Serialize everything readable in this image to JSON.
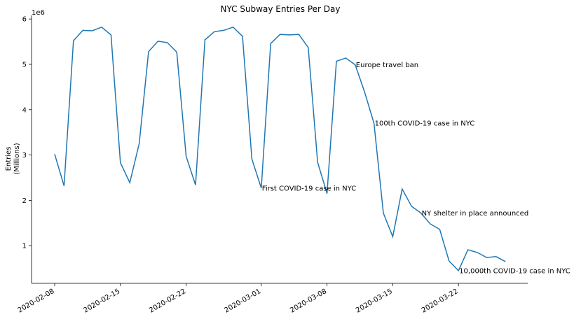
{
  "chart_data": {
    "type": "line",
    "title": "NYC Subway Entries Per Day",
    "ylabel": [
      "Entries",
      "(Millions)"
    ],
    "y_offset_label": "1e6",
    "ylim": [
      0.17,
      6.08
    ],
    "y_ticks": [
      1,
      2,
      3,
      4,
      5,
      6
    ],
    "y_tick_labels": [
      "1",
      "2",
      "3",
      "4",
      "5",
      "6"
    ],
    "x_ticks": [
      "2020-02-08",
      "2020-02-15",
      "2020-02-22",
      "2020-03-01",
      "2020-03-08",
      "2020-03-15",
      "2020-03-22"
    ],
    "grid": false,
    "series": [
      {
        "color": "#1f77b4",
        "x": [
          "2020-02-08",
          "2020-02-09",
          "2020-02-10",
          "2020-02-11",
          "2020-02-12",
          "2020-02-13",
          "2020-02-14",
          "2020-02-15",
          "2020-02-16",
          "2020-02-17",
          "2020-02-18",
          "2020-02-19",
          "2020-02-20",
          "2020-02-21",
          "2020-02-22",
          "2020-02-23",
          "2020-02-24",
          "2020-02-25",
          "2020-02-26",
          "2020-02-27",
          "2020-02-28",
          "2020-02-29",
          "2020-03-01",
          "2020-03-02",
          "2020-03-03",
          "2020-03-04",
          "2020-03-05",
          "2020-03-06",
          "2020-03-07",
          "2020-03-08",
          "2020-03-09",
          "2020-03-10",
          "2020-03-11",
          "2020-03-12",
          "2020-03-13",
          "2020-03-14",
          "2020-03-15",
          "2020-03-16",
          "2020-03-17",
          "2020-03-18",
          "2020-03-19",
          "2020-03-20",
          "2020-03-21",
          "2020-03-22",
          "2020-03-23",
          "2020-03-24",
          "2020-03-25",
          "2020-03-26",
          "2020-03-27"
        ],
        "y": [
          3.02,
          2.32,
          5.52,
          5.75,
          5.74,
          5.82,
          5.65,
          2.83,
          2.39,
          3.25,
          5.28,
          5.51,
          5.48,
          5.27,
          2.97,
          2.34,
          5.54,
          5.72,
          5.75,
          5.82,
          5.62,
          2.91,
          2.27,
          5.46,
          5.66,
          5.65,
          5.66,
          5.37,
          2.84,
          2.15,
          5.07,
          5.14,
          4.99,
          4.39,
          3.7,
          1.72,
          1.2,
          2.25,
          1.87,
          1.72,
          1.48,
          1.36,
          0.66,
          0.45,
          0.91,
          0.85,
          0.74,
          0.76,
          0.65
        ]
      }
    ],
    "annotations": [
      {
        "date": "2020-03-01",
        "y": 2.27,
        "text": "First COVID-19 case in NYC"
      },
      {
        "date": "2020-03-11",
        "y": 4.99,
        "text": "Europe travel ban"
      },
      {
        "date": "2020-03-13",
        "y": 3.7,
        "text": "100th COVID-19 case in NYC"
      },
      {
        "date": "2020-03-18",
        "y": 1.72,
        "text": "NY shelter in place announced"
      },
      {
        "date": "2020-03-22",
        "y": 0.45,
        "text": "10,000th COVID-19 case in NYC"
      }
    ]
  }
}
